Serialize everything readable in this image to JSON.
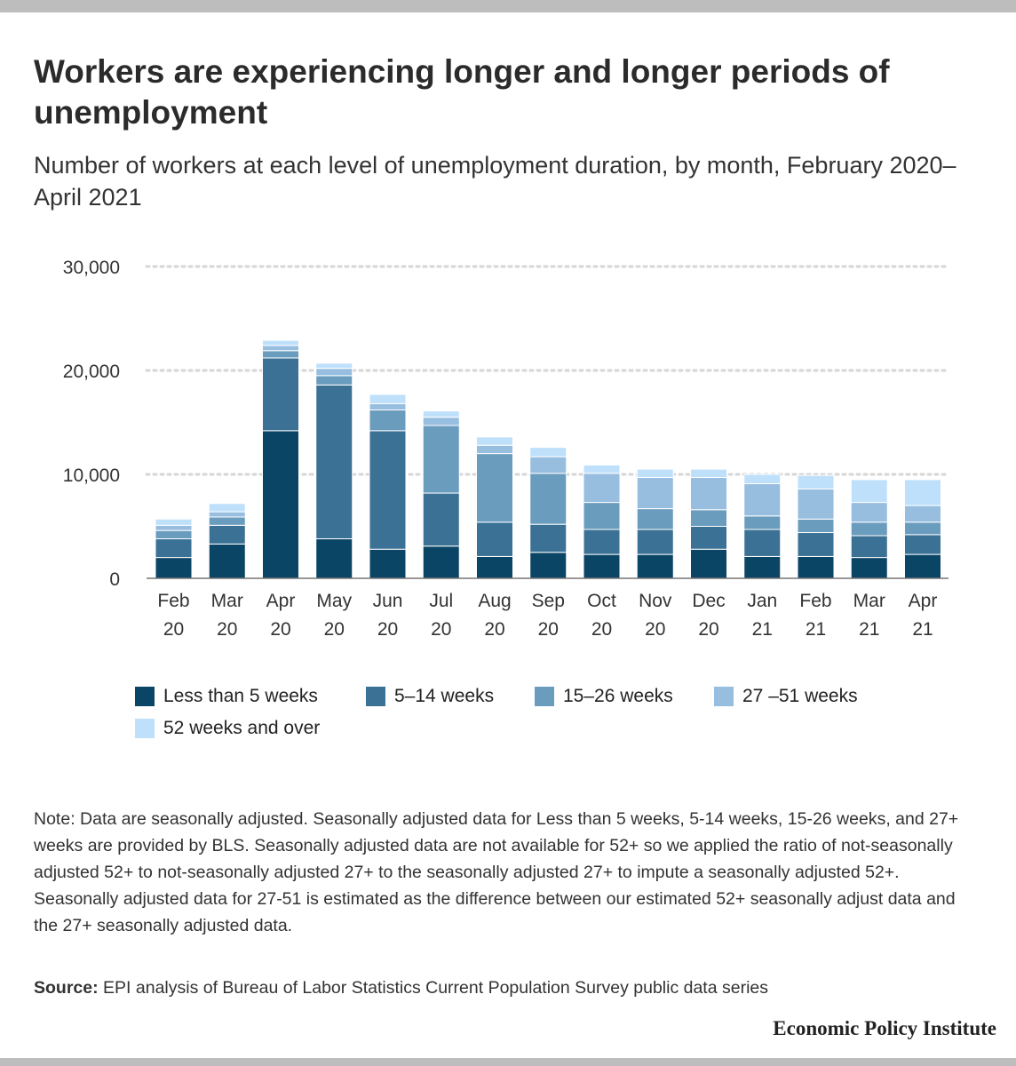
{
  "header": {
    "title": "Workers are experiencing longer and longer periods of unemployment",
    "subtitle": "Number of workers at each level of unemployment duration, by month, February 2020–April 2021"
  },
  "chart_data": {
    "type": "bar",
    "stacked": true,
    "title": "Workers are experiencing longer and longer periods of unemployment",
    "xlabel": "",
    "ylabel": "",
    "ylim": [
      0,
      30000
    ],
    "yticks": [
      0,
      10000,
      20000,
      30000
    ],
    "ytick_labels": [
      "0",
      "10,000",
      "20,000",
      "30,000"
    ],
    "grid": true,
    "categories": [
      [
        "Feb",
        "20"
      ],
      [
        "Mar",
        "20"
      ],
      [
        "Apr",
        "20"
      ],
      [
        "May",
        "20"
      ],
      [
        "Jun",
        "20"
      ],
      [
        "Jul",
        "20"
      ],
      [
        "Aug",
        "20"
      ],
      [
        "Sep",
        "20"
      ],
      [
        "Oct",
        "20"
      ],
      [
        "Nov",
        "20"
      ],
      [
        "Dec",
        "20"
      ],
      [
        "Jan",
        "21"
      ],
      [
        "Feb",
        "21"
      ],
      [
        "Mar",
        "21"
      ],
      [
        "Apr",
        "21"
      ]
    ],
    "series": [
      {
        "name": "Less than 5 weeks",
        "color": "#0b4566",
        "values": [
          2000,
          3300,
          14200,
          3800,
          2800,
          3100,
          2100,
          2500,
          2300,
          2300,
          2800,
          2100,
          2100,
          2000,
          2300
        ]
      },
      {
        "name": "5–14 weeks",
        "color": "#3a7194",
        "values": [
          1800,
          1800,
          7000,
          14800,
          11400,
          5100,
          3300,
          2700,
          2400,
          2400,
          2200,
          2600,
          2300,
          2100,
          1900
        ]
      },
      {
        "name": "15–26 weeks",
        "color": "#6a9cbe",
        "values": [
          800,
          800,
          700,
          900,
          2000,
          6500,
          6600,
          4900,
          2600,
          2000,
          1600,
          1300,
          1300,
          1300,
          1200
        ]
      },
      {
        "name": "27 –51 weeks",
        "color": "#97bddf",
        "values": [
          500,
          500,
          500,
          700,
          600,
          800,
          800,
          1600,
          2800,
          3000,
          3100,
          3100,
          2900,
          1900,
          1600
        ]
      },
      {
        "name": "52 weeks and over",
        "color": "#bfe0fb",
        "values": [
          600,
          800,
          500,
          500,
          900,
          600,
          800,
          900,
          800,
          800,
          800,
          900,
          1300,
          2200,
          2500
        ]
      }
    ],
    "legend_position": "bottom"
  },
  "footer": {
    "note": "Note: Data are seasonally adjusted. Seasonally adjusted data for Less than 5 weeks, 5-14 weeks, 15-26 weeks, and 27+ weeks are provided by BLS. Seasonally adjusted data are not available for 52+ so we applied the ratio of not-seasonally adjusted 52+ to not-seasonally adjusted 27+ to the seasonally adjusted 27+ to impute a seasonally adjusted 52+. Seasonally adjusted data for 27-51 is estimated as the difference between our estimated 52+ seasonally adjust data and the 27+ seasonally adjusted data.",
    "source_label": "Source:",
    "source_text": " EPI analysis of Bureau of Labor Statistics Current Population Survey public data series",
    "brand": "Economic Policy Institute"
  }
}
